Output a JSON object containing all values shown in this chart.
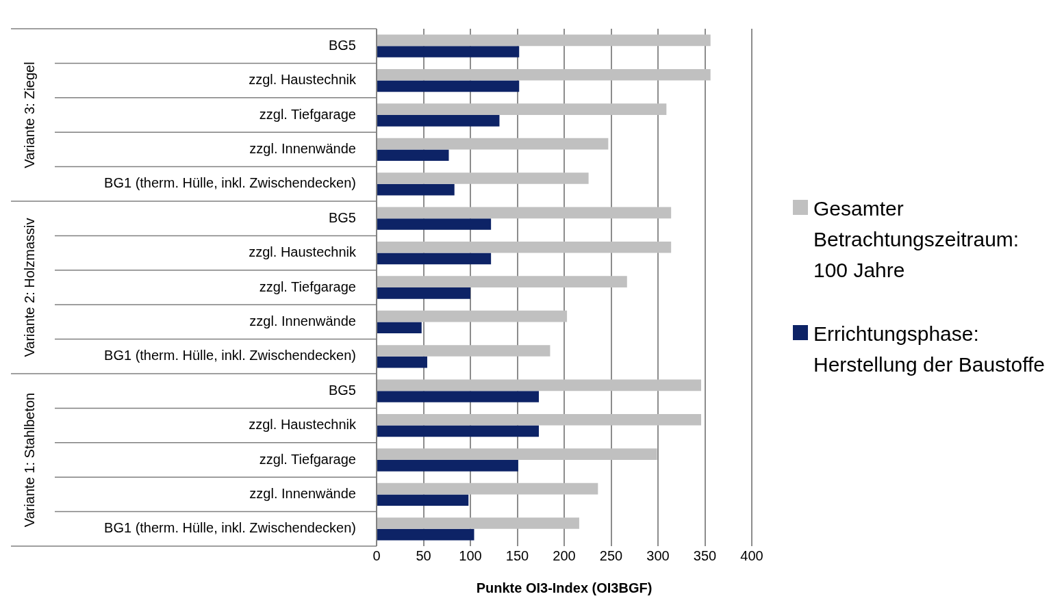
{
  "chart_data": {
    "type": "bar",
    "orientation": "horizontal",
    "xlabel": "Punkte OI3-Index (OI3BGF)",
    "categories": [
      "BG5",
      "zzgl. Haustechnik",
      "zzgl. Tiefgarage",
      "zzgl. Innenwände",
      "BG1 (therm. Hülle, inkl. Zwischendecken)",
      "BG5",
      "zzgl. Haustechnik",
      "zzgl. Tiefgarage",
      "zzgl. Innenwände",
      "BG1 (therm. Hülle, inkl. Zwischendecken)",
      "BG5",
      "zzgl. Haustechnik",
      "zzgl. Tiefgarage",
      "zzgl. Innenwände",
      "BG1 (therm. Hülle, inkl. Zwischendecken)"
    ],
    "series": [
      {
        "name": "Gesamter Betrachtungszeitraum: 100 Jahre",
        "color": "#c0c0c0",
        "values": [
          356,
          356,
          309,
          247,
          226,
          314,
          314,
          267,
          203,
          185,
          346,
          346,
          299,
          236,
          216
        ]
      },
      {
        "name": "Errichtungsphase: Herstellung der Baustoffe",
        "color": "#0d2366",
        "values": [
          152,
          152,
          131,
          77,
          83,
          122,
          122,
          100,
          48,
          54,
          173,
          173,
          151,
          98,
          104
        ]
      }
    ],
    "annotations": [
      "Variante 3: Ziegel",
      "Variante 2: Holzmassiv",
      "Variante 1: Stahlbeton"
    ],
    "xlim": [
      0,
      400
    ],
    "xticks": [
      0,
      50,
      100,
      150,
      200,
      250,
      300,
      350,
      400
    ],
    "grid": "x",
    "legend": "right"
  }
}
